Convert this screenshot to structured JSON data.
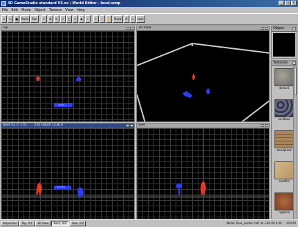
{
  "window": {
    "title": "3D GameStudio standard V5.xx / World Editor - level.wmp",
    "min": "_",
    "max": "□",
    "close": "×"
  },
  "menu": [
    "File",
    "Edit",
    "Mode",
    "Object",
    "Texture",
    "View",
    "Help"
  ],
  "toolbar": {
    "left": [
      "",
      "",
      "",
      "Build",
      "Run",
      "",
      "",
      "",
      "",
      "",
      "",
      "",
      ""
    ],
    "right": [
      "",
      "",
      "",
      "Show",
      "",
      "",
      "Lock"
    ]
  },
  "viewports": {
    "top": {
      "label": "Top"
    },
    "view3d": {
      "label": "3D View"
    },
    "back": {
      "label": "Back (0, 0, 170...  ... 0.0) Depth 1536.0"
    },
    "side": {
      "label": "Side"
    }
  },
  "object_panel": {
    "label": "Object"
  },
  "textures_panel": {
    "label": "Textures",
    "items": [
      {
        "name": "darkw1",
        "color": "#8a8680"
      },
      {
        "name": "rockblue",
        "color": "#4c5068"
      },
      {
        "name": "woodplank",
        "color": "#9a7a52"
      },
      {
        "name": "sandtile",
        "color": "#c8a878"
      },
      {
        "name": "rugwine",
        "color": "#9c5a36"
      }
    ]
  },
  "status_tabs": [
    "Properties",
    "Top, X/Y",
    "3D View",
    "Back, X/Z",
    "Side, Y/Z"
  ],
  "status_text": "Model 'blue_soldier.mdl' at  -184 00 0.00 ... 320.00",
  "colors": {
    "player": "#e53b1f",
    "enemy": "#2a3df0",
    "grid": "#3a3a3a"
  }
}
